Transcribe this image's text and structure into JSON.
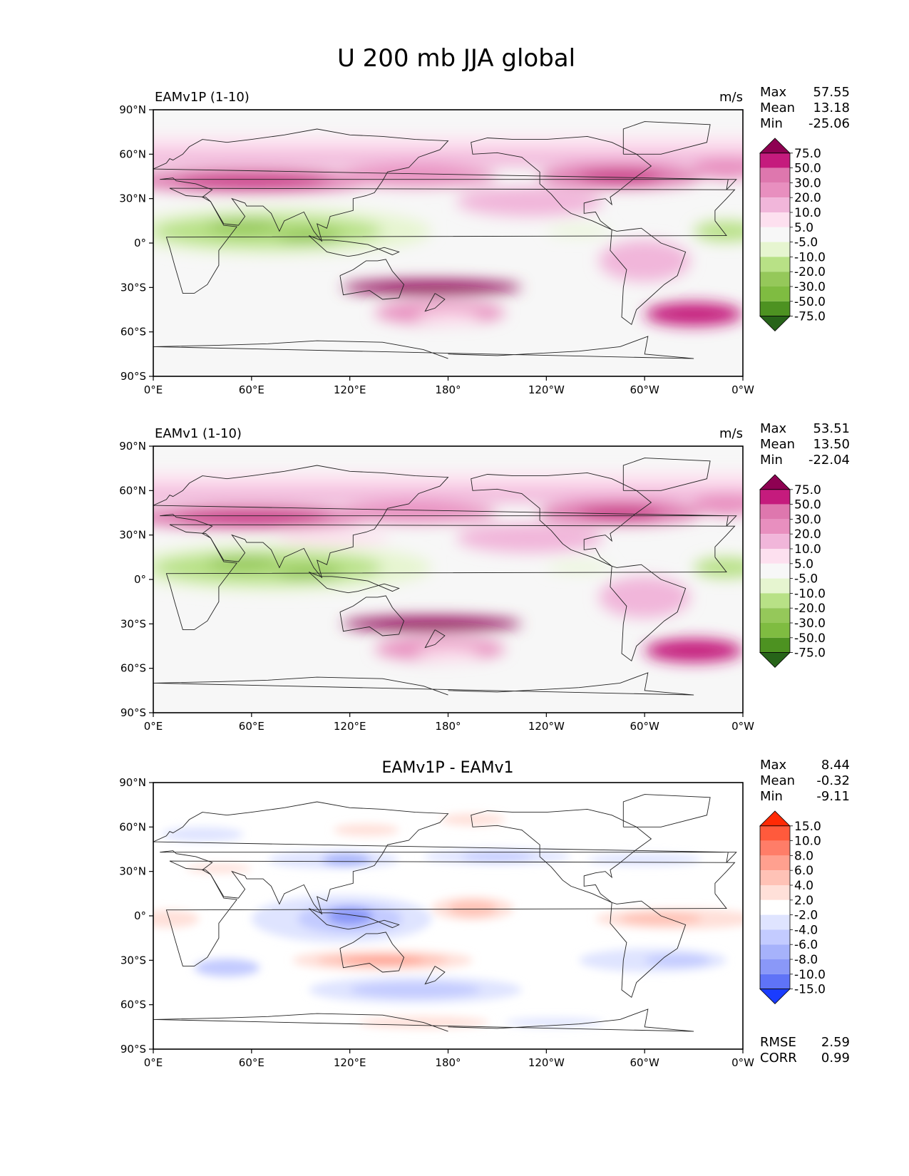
{
  "title": "U 200 mb JJA global",
  "x_ticks": [
    "0°E",
    "60°E",
    "120°E",
    "180°",
    "120°W",
    "60°W",
    "0°W"
  ],
  "y_ticks": [
    "90°N",
    "60°N",
    "30°N",
    "0°",
    "30°S",
    "60°S",
    "90°S"
  ],
  "panels": [
    {
      "id": "test",
      "left_title": "EAMv1P (1-10)",
      "center_title": "",
      "units": "m/s",
      "stats": {
        "labels": [
          "Max",
          "Mean",
          "Min"
        ],
        "values": [
          "57.55",
          "13.18",
          "-25.06"
        ]
      },
      "colorbar": "wind",
      "field": "test"
    },
    {
      "id": "ref",
      "left_title": "EAMv1 (1-10)",
      "center_title": "",
      "units": "m/s",
      "stats": {
        "labels": [
          "Max",
          "Mean",
          "Min"
        ],
        "values": [
          "53.51",
          "13.50",
          "-22.04"
        ]
      },
      "colorbar": "wind",
      "field": "ref"
    },
    {
      "id": "diff",
      "left_title": "",
      "center_title": "EAMv1P - EAMv1",
      "units": "",
      "stats": {
        "labels": [
          "Max",
          "Mean",
          "Min"
        ],
        "values": [
          "8.44",
          "-0.32",
          "-9.11"
        ]
      },
      "colorbar": "diff",
      "field": "diff",
      "extra_stats": {
        "labels": [
          "RMSE",
          "CORR"
        ],
        "values": [
          "2.59",
          "0.99"
        ]
      }
    }
  ],
  "chart_data": [
    {
      "type": "heatmap",
      "subtype": "filled-contour map",
      "title": "EAMv1P (1-10)",
      "units": "m/s",
      "xlim": [
        0,
        360
      ],
      "ylim": [
        -90,
        90
      ],
      "levels": [
        -75,
        -50,
        -30,
        -20,
        -10,
        -5,
        5,
        10,
        20,
        30,
        50,
        75
      ],
      "level_labels": [
        "75.0",
        "50.0",
        "30.0",
        "20.0",
        "10.0",
        "5.0",
        "-5.0",
        "-10.0",
        "-20.0",
        "-30.0",
        "-50.0",
        "-75.0"
      ],
      "colors": [
        "#8e0152",
        "#c51b7d",
        "#de77ae",
        "#e88fbf",
        "#f1b6da",
        "#fde0ef",
        "#f7f7f7",
        "#e6f5d0",
        "#b8e186",
        "#95c85a",
        "#7fbc41",
        "#4d9221",
        "#276419"
      ],
      "stats": {
        "max": 57.55,
        "mean": 13.18,
        "min": -25.06
      }
    },
    {
      "type": "heatmap",
      "subtype": "filled-contour map",
      "title": "EAMv1 (1-10)",
      "units": "m/s",
      "xlim": [
        0,
        360
      ],
      "ylim": [
        -90,
        90
      ],
      "levels": [
        -75,
        -50,
        -30,
        -20,
        -10,
        -5,
        5,
        10,
        20,
        30,
        50,
        75
      ],
      "level_labels": [
        "75.0",
        "50.0",
        "30.0",
        "20.0",
        "10.0",
        "5.0",
        "-5.0",
        "-10.0",
        "-20.0",
        "-30.0",
        "-50.0",
        "-75.0"
      ],
      "colors": [
        "#8e0152",
        "#c51b7d",
        "#de77ae",
        "#e88fbf",
        "#f1b6da",
        "#fde0ef",
        "#f7f7f7",
        "#e6f5d0",
        "#b8e186",
        "#95c85a",
        "#7fbc41",
        "#4d9221",
        "#276419"
      ],
      "stats": {
        "max": 53.51,
        "mean": 13.5,
        "min": -22.04
      }
    },
    {
      "type": "heatmap",
      "subtype": "filled-contour map",
      "title": "EAMv1P - EAMv1",
      "xlim": [
        0,
        360
      ],
      "ylim": [
        -90,
        90
      ],
      "levels": [
        -15,
        -10,
        -8,
        -6,
        -4,
        -2,
        2,
        4,
        6,
        8,
        10,
        15
      ],
      "level_labels": [
        "15.0",
        "10.0",
        "8.0",
        "6.0",
        "4.0",
        "2.0",
        "-2.0",
        "-4.0",
        "-6.0",
        "-8.0",
        "-10.0",
        "-15.0"
      ],
      "colors": [
        "#ff2a05",
        "#ff5a3c",
        "#ff7d68",
        "#ffa08f",
        "#ffc2b6",
        "#ffe0d9",
        "#ffffff",
        "#dfe4ff",
        "#c3cbff",
        "#a6b2fb",
        "#8a98f8",
        "#5f73f7",
        "#1a3cff"
      ],
      "stats": {
        "max": 8.44,
        "mean": -0.32,
        "min": -9.11,
        "rmse": 2.59,
        "corr": 0.99
      }
    }
  ]
}
